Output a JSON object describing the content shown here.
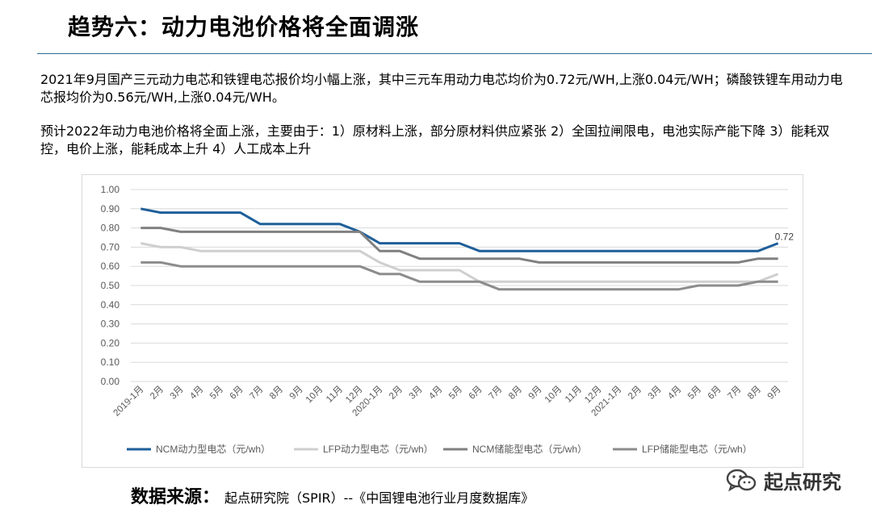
{
  "header": {
    "title": "趋势六：动力电池价格将全面调涨"
  },
  "body": {
    "paragraph1": "2021年9月国产三元动力电芯和铁锂电芯报价均小幅上涨，其中三元车用动力电芯均价为0.72元/WH,上涨0.04元/WH；磷酸铁锂车用动力电芯报均价为0.56元/WH,上涨0.04元/WH。",
    "paragraph2": "预计2022年动力电池价格将全面上涨，主要由于：1）原材料上涨，部分原材料供应紧张 2）全国拉闸限电，电池实际产能下降 3）能耗双控，电价上涨，能耗成本上升 4）人工成本上升"
  },
  "footer": {
    "source_label": "数据来源：",
    "source_text": "起点研究院（SPIR）--《中国锂电池行业月度数据库》",
    "brand_text": "起点研究",
    "brand_icon": "wechat-icon"
  },
  "chart_data": {
    "type": "line",
    "title": "",
    "xlabel": "",
    "ylabel": "",
    "ylim": [
      0,
      1.0
    ],
    "yticks": [
      "0.00",
      "0.10",
      "0.20",
      "0.30",
      "0.40",
      "0.50",
      "0.60",
      "0.70",
      "0.80",
      "0.90",
      "1.00"
    ],
    "grid": true,
    "legend_position": "bottom",
    "categories": [
      "2019-1月",
      "2月",
      "3月",
      "4月",
      "5月",
      "6月",
      "7月",
      "8月",
      "9月",
      "10月",
      "11月",
      "12月",
      "2020-1月",
      "2月",
      "3月",
      "4月",
      "5月",
      "6月",
      "7月",
      "8月",
      "9月",
      "10月",
      "11月",
      "12月",
      "2021-1月",
      "2月",
      "3月",
      "4月",
      "5月",
      "6月",
      "7月",
      "8月",
      "9月"
    ],
    "annotations": [
      {
        "series": 0,
        "index": 32,
        "text": "0.72"
      }
    ],
    "series": [
      {
        "name": "NCM动力型电芯（元/wh）",
        "color": "#1f5f99",
        "width": 3,
        "values": [
          0.9,
          0.88,
          0.88,
          0.88,
          0.88,
          0.88,
          0.82,
          0.82,
          0.82,
          0.82,
          0.82,
          0.78,
          0.72,
          0.72,
          0.72,
          0.72,
          0.72,
          0.68,
          0.68,
          0.68,
          0.68,
          0.68,
          0.68,
          0.68,
          0.68,
          0.68,
          0.68,
          0.68,
          0.68,
          0.68,
          0.68,
          0.68,
          0.72
        ]
      },
      {
        "name": "LFP动力型电芯（元/wh）",
        "color": "#cfcfcf",
        "width": 3,
        "values": [
          0.72,
          0.7,
          0.7,
          0.68,
          0.68,
          0.68,
          0.68,
          0.68,
          0.68,
          0.68,
          0.68,
          0.68,
          0.62,
          0.58,
          0.58,
          0.58,
          0.58,
          0.52,
          0.52,
          0.52,
          0.52,
          0.52,
          0.52,
          0.52,
          0.52,
          0.52,
          0.52,
          0.52,
          0.52,
          0.52,
          0.52,
          0.52,
          0.56
        ]
      },
      {
        "name": "NCM储能型电芯（元/wh）",
        "color": "#808080",
        "width": 3,
        "values": [
          0.8,
          0.8,
          0.78,
          0.78,
          0.78,
          0.78,
          0.78,
          0.78,
          0.78,
          0.78,
          0.78,
          0.78,
          0.68,
          0.68,
          0.64,
          0.64,
          0.64,
          0.64,
          0.64,
          0.64,
          0.62,
          0.62,
          0.62,
          0.62,
          0.62,
          0.62,
          0.62,
          0.62,
          0.62,
          0.62,
          0.62,
          0.64,
          0.64
        ]
      },
      {
        "name": "LFP储能型电芯（元/wh）",
        "color": "#8c8c8c",
        "width": 3,
        "values": [
          0.62,
          0.62,
          0.6,
          0.6,
          0.6,
          0.6,
          0.6,
          0.6,
          0.6,
          0.6,
          0.6,
          0.6,
          0.56,
          0.56,
          0.52,
          0.52,
          0.52,
          0.52,
          0.48,
          0.48,
          0.48,
          0.48,
          0.48,
          0.48,
          0.48,
          0.48,
          0.48,
          0.48,
          0.5,
          0.5,
          0.5,
          0.52,
          0.52
        ]
      }
    ]
  }
}
